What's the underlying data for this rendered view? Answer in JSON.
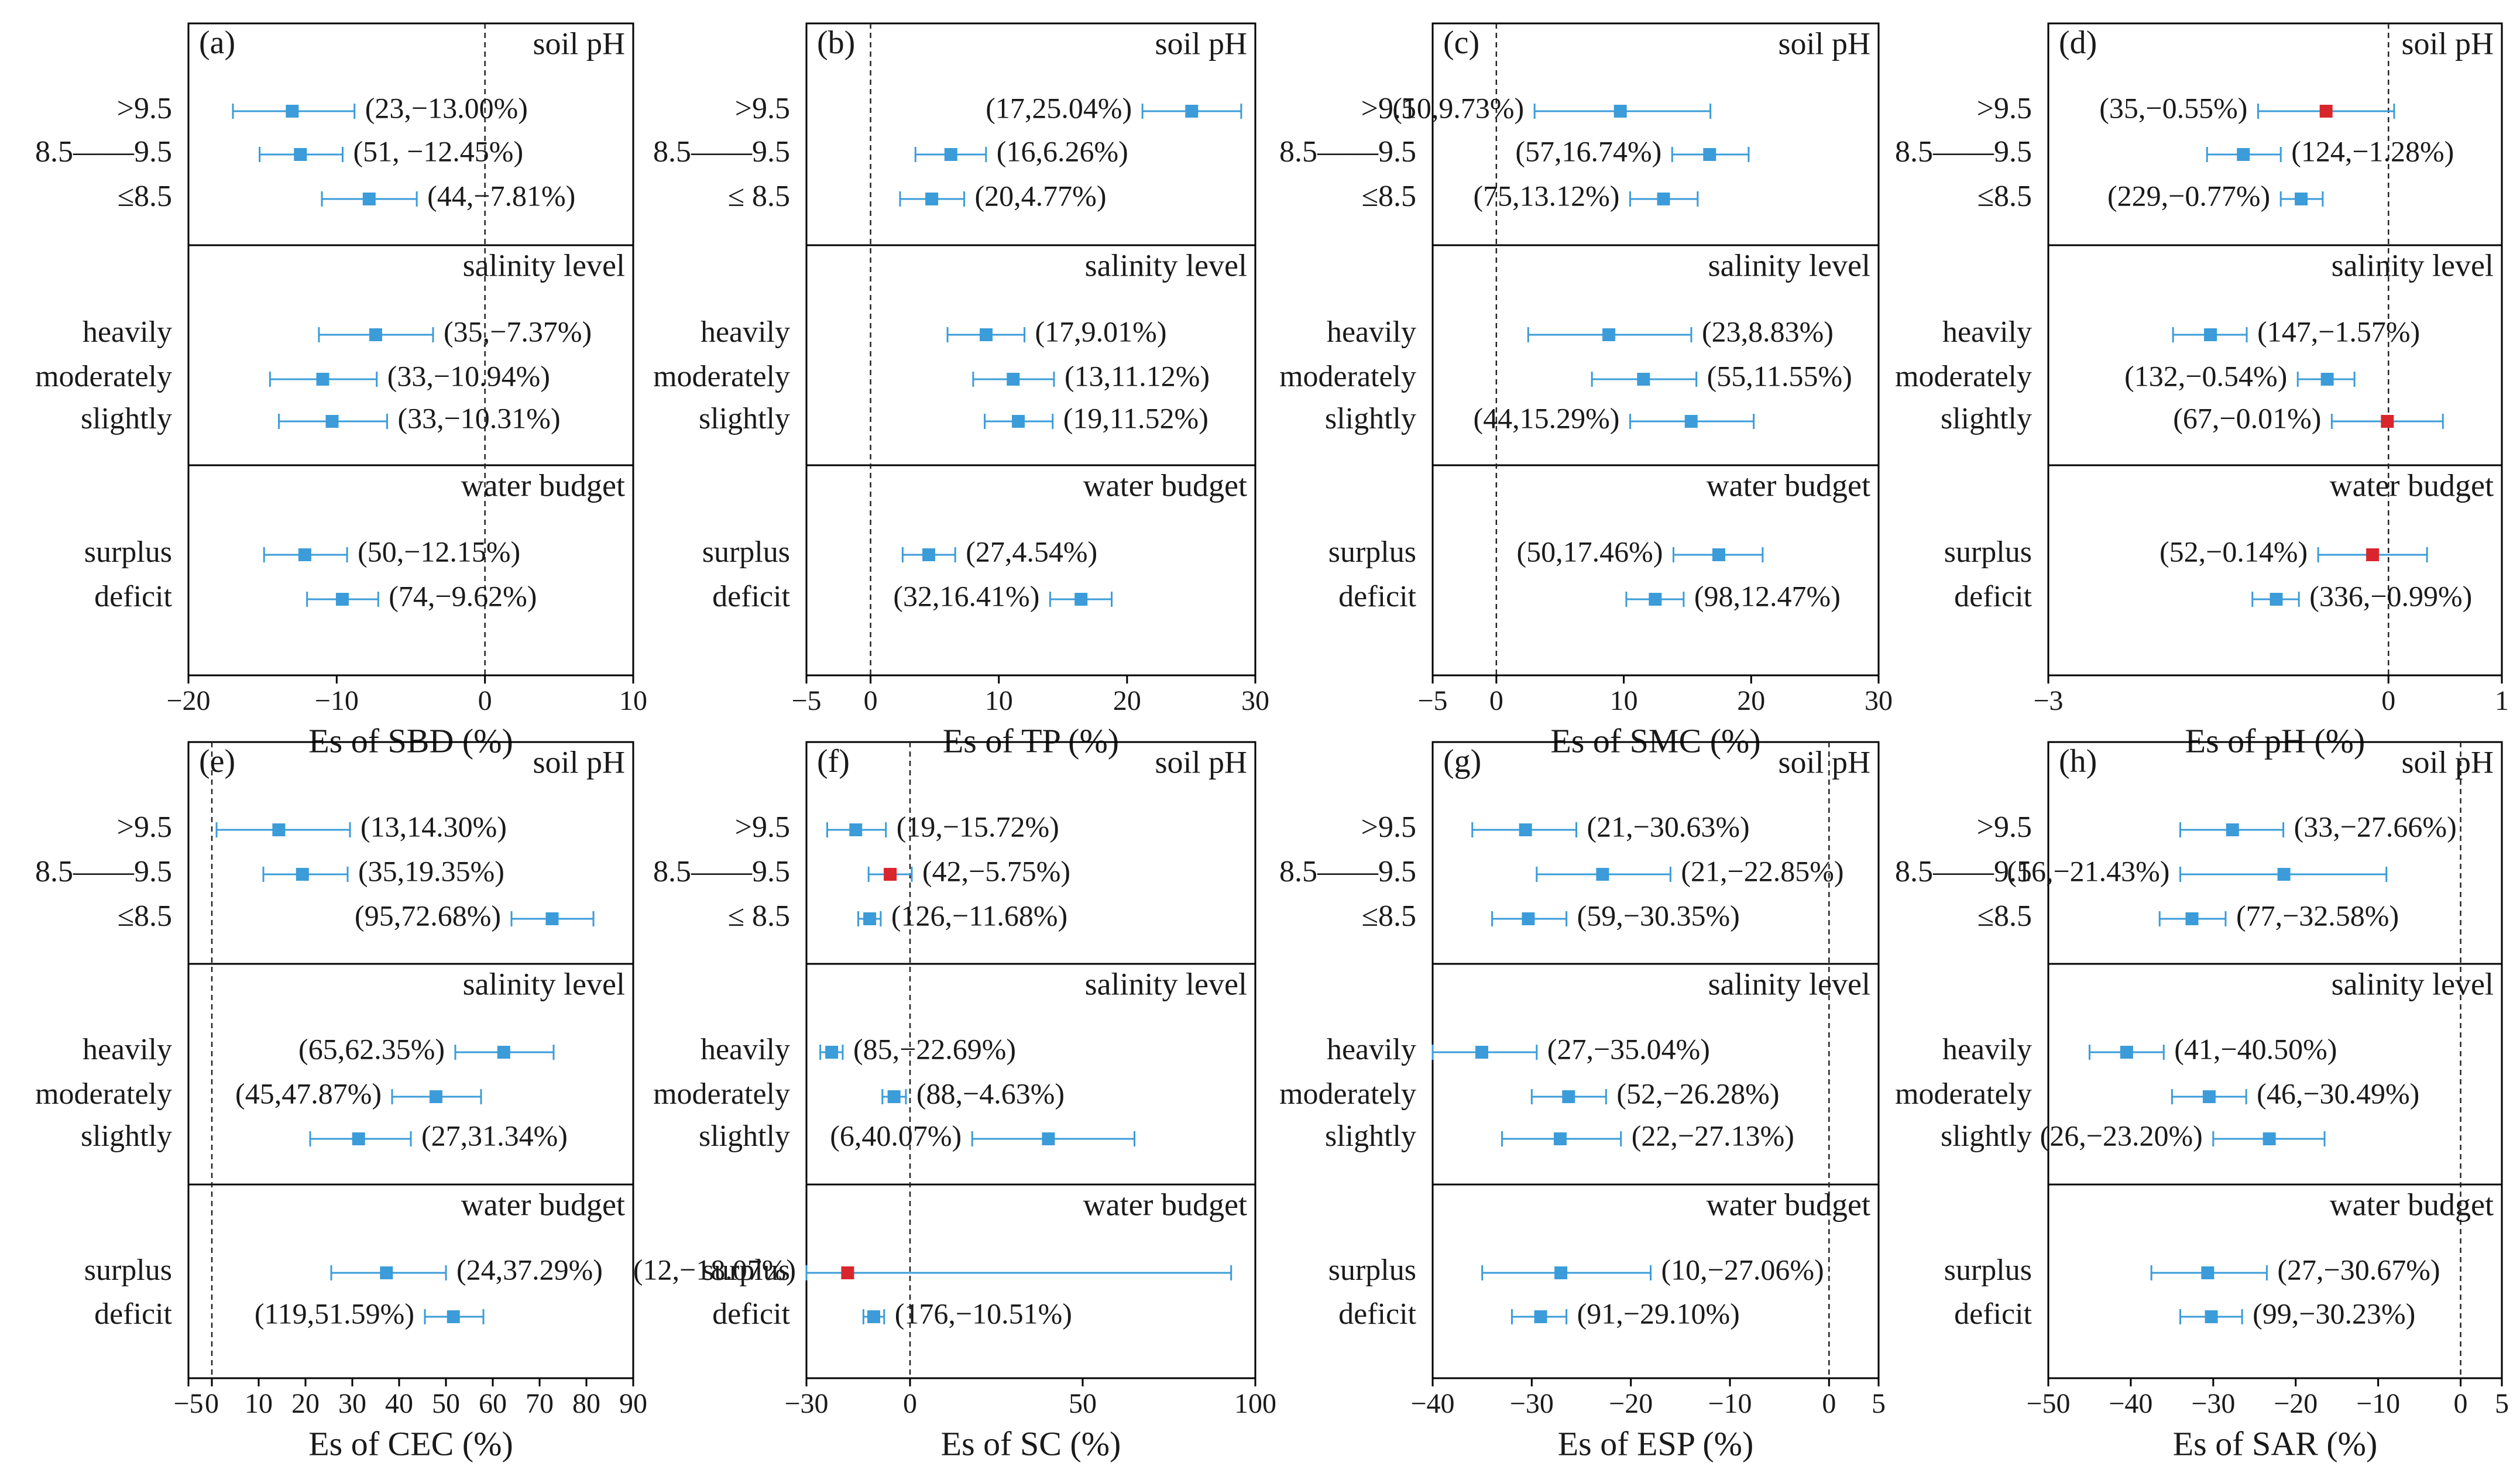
{
  "chart_data": [
    {
      "panel": "(a)",
      "type": "forest",
      "xlabel": "Es of SBD  (%)",
      "xlim": [
        -20,
        10
      ],
      "xticks": [
        -20,
        -10,
        0,
        10
      ],
      "xtick_labels": [
        "−20",
        "−10",
        "0",
        "10"
      ],
      "ref_line": 0,
      "sections": [
        {
          "title": "soil pH",
          "rows": [
            {
              "cat": ">9.5",
              "est": -13.0,
              "lo": -17.0,
              "hi": -8.8,
              "label": "(23,−13.00%)",
              "color": "#3B9CD9"
            },
            {
              "cat": "8.5——9.5",
              "est": -12.45,
              "lo": -15.2,
              "hi": -9.6,
              "label": "(51, −12.45%)",
              "color": "#3B9CD9"
            },
            {
              "cat": "≤8.5",
              "est": -7.81,
              "lo": -11.0,
              "hi": -4.6,
              "label": "(44,−7.81%)",
              "color": "#3B9CD9"
            }
          ]
        },
        {
          "title": "salinity level",
          "rows": [
            {
              "cat": "heavily",
              "est": -7.37,
              "lo": -11.2,
              "hi": -3.5,
              "label": "(35,−7.37%)",
              "color": "#3B9CD9"
            },
            {
              "cat": "moderately",
              "est": -10.94,
              "lo": -14.5,
              "hi": -7.3,
              "label": "(33,−10.94%)",
              "color": "#3B9CD9"
            },
            {
              "cat": "slightly",
              "est": -10.31,
              "lo": -13.9,
              "hi": -6.6,
              "label": "(33,−10.31%)",
              "color": "#3B9CD9"
            }
          ]
        },
        {
          "title": "water budget",
          "rows": [
            {
              "cat": "surplus",
              "est": -12.15,
              "lo": -14.9,
              "hi": -9.3,
              "label": "(50,−12.15%)",
              "color": "#3B9CD9"
            },
            {
              "cat": "deficit",
              "est": -9.62,
              "lo": -12.0,
              "hi": -7.2,
              "label": "(74,−9.62%)",
              "color": "#3B9CD9"
            }
          ]
        }
      ]
    },
    {
      "panel": "(b)",
      "type": "forest",
      "xlabel": "Es of TP  (%)",
      "xlim": [
        -5,
        30
      ],
      "xticks": [
        -5,
        0,
        10,
        20,
        30
      ],
      "xtick_labels": [
        "−5",
        "0",
        "10",
        "20",
        "30"
      ],
      "ref_line": 0,
      "sections": [
        {
          "title": "soil pH",
          "rows": [
            {
              "cat": ">9.5",
              "est": 25.04,
              "lo": 21.2,
              "hi": 28.9,
              "label": "(17,25.04%)",
              "color": "#3B9CD9"
            },
            {
              "cat": "8.5——9.5",
              "est": 6.26,
              "lo": 3.5,
              "hi": 9.0,
              "label": "(16,6.26%)",
              "color": "#3B9CD9"
            },
            {
              "cat": "≤ 8.5",
              "est": 4.77,
              "lo": 2.3,
              "hi": 7.3,
              "label": "(20,4.77%)",
              "color": "#3B9CD9"
            }
          ]
        },
        {
          "title": "salinity level",
          "rows": [
            {
              "cat": "heavily",
              "est": 9.01,
              "lo": 6.0,
              "hi": 12.0,
              "label": "(17,9.01%)",
              "color": "#3B9CD9"
            },
            {
              "cat": "moderately",
              "est": 11.12,
              "lo": 8.0,
              "hi": 14.3,
              "label": "(13,11.12%)",
              "color": "#3B9CD9"
            },
            {
              "cat": "slightly",
              "est": 11.52,
              "lo": 8.9,
              "hi": 14.2,
              "label": "(19,11.52%)",
              "color": "#3B9CD9"
            }
          ]
        },
        {
          "title": "water budget",
          "rows": [
            {
              "cat": "surplus",
              "est": 4.54,
              "lo": 2.5,
              "hi": 6.6,
              "label": "(27,4.54%)",
              "color": "#3B9CD9"
            },
            {
              "cat": "deficit",
              "est": 16.41,
              "lo": 14.0,
              "hi": 18.8,
              "label": "(32,16.41%)",
              "color": "#3B9CD9"
            }
          ]
        }
      ]
    },
    {
      "panel": "(c)",
      "type": "forest",
      "xlabel": "Es of SMC  (%)",
      "xlim": [
        -5,
        30
      ],
      "xticks": [
        -5,
        0,
        10,
        20,
        30
      ],
      "xtick_labels": [
        "−5",
        "0",
        "10",
        "20",
        "30"
      ],
      "ref_line": 0,
      "sections": [
        {
          "title": "soil pH",
          "rows": [
            {
              "cat": ">9.5",
              "est": 9.73,
              "lo": 3.0,
              "hi": 16.8,
              "label": "(10,9.73%)",
              "color": "#3B9CD9"
            },
            {
              "cat": "8.5——9.5",
              "est": 16.74,
              "lo": 13.8,
              "hi": 19.8,
              "label": "(57,16.74%)",
              "color": "#3B9CD9"
            },
            {
              "cat": "≤8.5",
              "est": 13.12,
              "lo": 10.5,
              "hi": 15.8,
              "label": "(75,13.12%)",
              "color": "#3B9CD9"
            }
          ]
        },
        {
          "title": "salinity level",
          "rows": [
            {
              "cat": "heavily",
              "est": 8.83,
              "lo": 2.5,
              "hi": 15.3,
              "label": "(23,8.83%)",
              "color": "#3B9CD9"
            },
            {
              "cat": "moderately",
              "est": 11.55,
              "lo": 7.5,
              "hi": 15.7,
              "label": "(55,11.55%)",
              "color": "#3B9CD9"
            },
            {
              "cat": "slightly",
              "est": 15.29,
              "lo": 10.5,
              "hi": 20.2,
              "label": "(44,15.29%)",
              "color": "#3B9CD9"
            }
          ]
        },
        {
          "title": "water budget",
          "rows": [
            {
              "cat": "surplus",
              "est": 17.46,
              "lo": 13.9,
              "hi": 20.9,
              "label": "(50,17.46%)",
              "color": "#3B9CD9"
            },
            {
              "cat": "deficit",
              "est": 12.47,
              "lo": 10.2,
              "hi": 14.7,
              "label": "(98,12.47%)",
              "color": "#3B9CD9"
            }
          ]
        }
      ]
    },
    {
      "panel": "(d)",
      "type": "forest",
      "xlabel": "Es of pH  (%)",
      "xlim": [
        -3,
        1
      ],
      "xticks": [
        -3,
        0,
        1
      ],
      "xtick_labels": [
        "−3",
        "0",
        "1"
      ],
      "ref_line": 0,
      "sections": [
        {
          "title": "soil pH",
          "rows": [
            {
              "cat": ">9.5",
              "est": -0.55,
              "lo": -1.15,
              "hi": 0.05,
              "label": "(35,−0.55%)",
              "color": "#D9262C"
            },
            {
              "cat": "8.5——9.5",
              "est": -1.28,
              "lo": -1.6,
              "hi": -0.95,
              "label": "(124,−1.28%)",
              "color": "#3B9CD9"
            },
            {
              "cat": "≤8.5",
              "est": -0.77,
              "lo": -0.95,
              "hi": -0.58,
              "label": "(229,−0.77%)",
              "color": "#3B9CD9"
            }
          ]
        },
        {
          "title": "salinity level",
          "rows": [
            {
              "cat": "heavily",
              "est": -1.57,
              "lo": -1.9,
              "hi": -1.25,
              "label": "(147,−1.57%)",
              "color": "#3B9CD9"
            },
            {
              "cat": "moderately",
              "est": -0.54,
              "lo": -0.8,
              "hi": -0.3,
              "label": "(132,−0.54%)",
              "color": "#3B9CD9"
            },
            {
              "cat": "slightly",
              "est": -0.01,
              "lo": -0.5,
              "hi": 0.48,
              "label": "(67,−0.01%)",
              "color": "#D9262C"
            }
          ]
        },
        {
          "title": "water budget",
          "rows": [
            {
              "cat": "surplus",
              "est": -0.14,
              "lo": -0.62,
              "hi": 0.34,
              "label": "(52,−0.14%)",
              "color": "#D9262C"
            },
            {
              "cat": "deficit",
              "est": -0.99,
              "lo": -1.2,
              "hi": -0.79,
              "label": "(336,−0.99%)",
              "color": "#3B9CD9"
            }
          ]
        }
      ]
    },
    {
      "panel": "(e)",
      "type": "forest",
      "xlabel": "Es of CEC  (%)",
      "xlim": [
        -5,
        90
      ],
      "xticks": [
        -5,
        0,
        10,
        20,
        30,
        40,
        50,
        60,
        70,
        80,
        90
      ],
      "xtick_labels": [
        "−5",
        "0",
        "10",
        "20",
        "30",
        "40",
        "50",
        "60",
        "70",
        "80",
        "90"
      ],
      "ref_line": 0,
      "sections": [
        {
          "title": "soil pH",
          "rows": [
            {
              "cat": ">9.5",
              "est": 14.3,
              "lo": 1.0,
              "hi": 29.5,
              "label": "(13,14.30%)",
              "color": "#3B9CD9"
            },
            {
              "cat": "8.5——9.5",
              "est": 19.35,
              "lo": 11.0,
              "hi": 29.0,
              "label": "(35,19.35%)",
              "color": "#3B9CD9"
            },
            {
              "cat": "≤8.5",
              "est": 72.68,
              "lo": 64.0,
              "hi": 81.5,
              "label": "(95,72.68%)",
              "color": "#3B9CD9"
            }
          ]
        },
        {
          "title": "salinity level",
          "rows": [
            {
              "cat": "heavily",
              "est": 62.35,
              "lo": 52.0,
              "hi": 73.0,
              "label": "(65,62.35%)",
              "color": "#3B9CD9"
            },
            {
              "cat": "moderately",
              "est": 47.87,
              "lo": 38.5,
              "hi": 57.5,
              "label": "(45,47.87%)",
              "color": "#3B9CD9"
            },
            {
              "cat": "slightly",
              "est": 31.34,
              "lo": 21.0,
              "hi": 42.5,
              "label": "(27,31.34%)",
              "color": "#3B9CD9"
            }
          ]
        },
        {
          "title": "water budget",
          "rows": [
            {
              "cat": "surplus",
              "est": 37.29,
              "lo": 25.5,
              "hi": 50.0,
              "label": "(24,37.29%)",
              "color": "#3B9CD9"
            },
            {
              "cat": "deficit",
              "est": 51.59,
              "lo": 45.5,
              "hi": 58.0,
              "label": "(119,51.59%)",
              "color": "#3B9CD9"
            }
          ]
        }
      ]
    },
    {
      "panel": "(f)",
      "type": "forest",
      "xlabel": "Es of SC  (%)",
      "xlim": [
        -30,
        100
      ],
      "xticks": [
        -30,
        0,
        50,
        100
      ],
      "xtick_labels": [
        "−30",
        "0",
        "50",
        "100"
      ],
      "ref_line": 0,
      "sections": [
        {
          "title": "soil pH",
          "rows": [
            {
              "cat": ">9.5",
              "est": -15.72,
              "lo": -24.0,
              "hi": -7.0,
              "label": "(19,−15.72%)",
              "color": "#3B9CD9"
            },
            {
              "cat": "8.5——9.5",
              "est": -5.75,
              "lo": -12.0,
              "hi": 0.5,
              "label": "(42,−5.75%)",
              "color": "#D9262C"
            },
            {
              "cat": "≤ 8.5",
              "est": -11.68,
              "lo": -15.0,
              "hi": -8.5,
              "label": "(126,−11.68%)",
              "color": "#3B9CD9"
            }
          ]
        },
        {
          "title": "salinity level",
          "rows": [
            {
              "cat": "heavily",
              "est": -22.69,
              "lo": -26.0,
              "hi": -19.5,
              "label": "(85,−22.69%)",
              "color": "#3B9CD9"
            },
            {
              "cat": "moderately",
              "est": -4.63,
              "lo": -8.0,
              "hi": -1.2,
              "label": "(88,−4.63%)",
              "color": "#3B9CD9"
            },
            {
              "cat": "slightly",
              "est": 40.07,
              "lo": 18.0,
              "hi": 65.0,
              "label": "(6,40.07%)",
              "color": "#3B9CD9"
            }
          ]
        },
        {
          "title": "water budget",
          "rows": [
            {
              "cat": "surplus",
              "est": -18.07,
              "lo": -30.0,
              "hi": 93.0,
              "label": "(12,−18.07%)",
              "color": "#D9262C"
            },
            {
              "cat": "deficit",
              "est": -10.51,
              "lo": -13.5,
              "hi": -7.5,
              "label": "(176,−10.51%)",
              "color": "#3B9CD9"
            }
          ]
        }
      ]
    },
    {
      "panel": "(g)",
      "type": "forest",
      "xlabel": "Es of ESP  (%)",
      "xlim": [
        -40,
        5
      ],
      "xticks": [
        -40,
        -30,
        -20,
        -10,
        0,
        5
      ],
      "xtick_labels": [
        "−40",
        "−30",
        "−20",
        "−10",
        "0",
        "5"
      ],
      "ref_line": 0,
      "sections": [
        {
          "title": "soil pH",
          "rows": [
            {
              "cat": ">9.5",
              "est": -30.63,
              "lo": -36.0,
              "hi": -25.5,
              "label": "(21,−30.63%)",
              "color": "#3B9CD9"
            },
            {
              "cat": "8.5——9.5",
              "est": -22.85,
              "lo": -29.5,
              "hi": -16.0,
              "label": "(21,−22.85%)",
              "color": "#3B9CD9"
            },
            {
              "cat": "≤8.5",
              "est": -30.35,
              "lo": -34.0,
              "hi": -26.5,
              "label": "(59,−30.35%)",
              "color": "#3B9CD9"
            }
          ]
        },
        {
          "title": "salinity level",
          "rows": [
            {
              "cat": "heavily",
              "est": -35.04,
              "lo": -40.0,
              "hi": -29.5,
              "label": "(27,−35.04%)",
              "color": "#3B9CD9"
            },
            {
              "cat": "moderately",
              "est": -26.28,
              "lo": -30.0,
              "hi": -22.5,
              "label": "(52,−26.28%)",
              "color": "#3B9CD9"
            },
            {
              "cat": "slightly",
              "est": -27.13,
              "lo": -33.0,
              "hi": -21.0,
              "label": "(22,−27.13%)",
              "color": "#3B9CD9"
            }
          ]
        },
        {
          "title": "water budget",
          "rows": [
            {
              "cat": "surplus",
              "est": -27.06,
              "lo": -35.0,
              "hi": -18.0,
              "label": "(10,−27.06%)",
              "color": "#3B9CD9"
            },
            {
              "cat": "deficit",
              "est": -29.1,
              "lo": -32.0,
              "hi": -26.5,
              "label": "(91,−29.10%)",
              "color": "#3B9CD9"
            }
          ]
        }
      ]
    },
    {
      "panel": "(h)",
      "type": "forest",
      "xlabel": "Es of SAR  (%)",
      "xlim": [
        -50,
        5
      ],
      "xticks": [
        -50,
        -40,
        -30,
        -20,
        -10,
        0,
        5
      ],
      "xtick_labels": [
        "−50",
        "−40",
        "−30",
        "−20",
        "−10",
        "0",
        "5"
      ],
      "ref_line": 0,
      "sections": [
        {
          "title": "soil pH",
          "rows": [
            {
              "cat": ">9.5",
              "est": -27.66,
              "lo": -34.0,
              "hi": -21.5,
              "label": "(33,−27.66%)",
              "color": "#3B9CD9"
            },
            {
              "cat": "8.5——9.5",
              "est": -21.43,
              "lo": -34.0,
              "hi": -9.0,
              "label": "(16,−21.43%)",
              "color": "#3B9CD9"
            },
            {
              "cat": "≤8.5",
              "est": -32.58,
              "lo": -36.5,
              "hi": -28.5,
              "label": "(77,−32.58%)",
              "color": "#3B9CD9"
            }
          ]
        },
        {
          "title": "salinity level",
          "rows": [
            {
              "cat": "heavily",
              "est": -40.5,
              "lo": -45.0,
              "hi": -36.0,
              "label": "(41,−40.50%)",
              "color": "#3B9CD9"
            },
            {
              "cat": "moderately",
              "est": -30.49,
              "lo": -35.0,
              "hi": -26.0,
              "label": "(46,−30.49%)",
              "color": "#3B9CD9"
            },
            {
              "cat": "slightly",
              "est": -23.2,
              "lo": -30.0,
              "hi": -16.5,
              "label": "(26,−23.20%)",
              "color": "#3B9CD9"
            }
          ]
        },
        {
          "title": "water budget",
          "rows": [
            {
              "cat": "surplus",
              "est": -30.67,
              "lo": -37.5,
              "hi": -23.5,
              "label": "(27,−30.67%)",
              "color": "#3B9CD9"
            },
            {
              "cat": "deficit",
              "est": -30.23,
              "lo": -34.0,
              "hi": -26.5,
              "label": "(99,−30.23%)",
              "color": "#3B9CD9"
            }
          ]
        }
      ]
    }
  ]
}
